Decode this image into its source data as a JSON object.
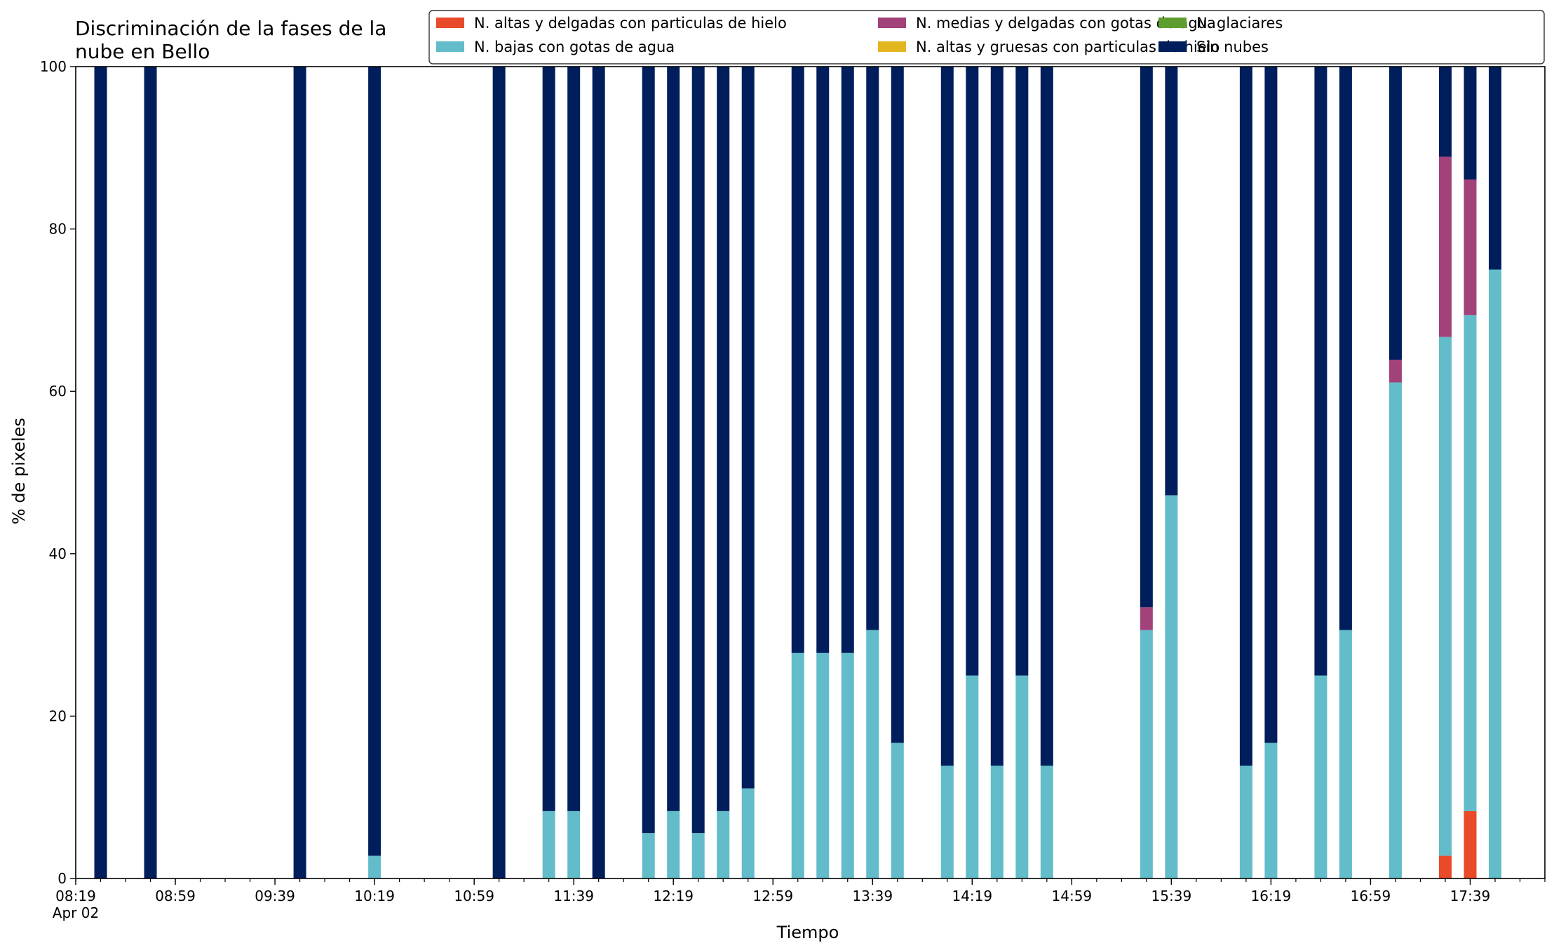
{
  "chart_data": {
    "type": "bar",
    "stacked": true,
    "title_lines": [
      "Discriminación de la fases de la",
      "nube en Bello"
    ],
    "xlabel": "Tiempo",
    "ylabel": "% de pixeles",
    "ylim": [
      0,
      100
    ],
    "yticks": [
      0,
      20,
      40,
      60,
      80,
      100
    ],
    "x_axis": {
      "start": "08:19",
      "end": "18:09",
      "major_ticks": [
        "08:19",
        "08:59",
        "09:39",
        "10:19",
        "10:59",
        "11:39",
        "12:19",
        "12:59",
        "13:39",
        "14:19",
        "14:59",
        "15:39",
        "16:19",
        "16:59",
        "17:39"
      ],
      "minor_tick_step_minutes": 10,
      "date_label": "Apr 02"
    },
    "legend_position": "top-right",
    "grid": false,
    "series": [
      {
        "name": "N. altas y delgadas con particulas de hielo",
        "color": "#e84a2a"
      },
      {
        "name": "N. altas y gruesas con particulas de hielo",
        "color": "#e3b51e"
      },
      {
        "name": "N. bajas con gotas de agua",
        "color": "#62bcc9"
      },
      {
        "name": "N. glaciares",
        "color": "#5e9e2f"
      },
      {
        "name": "N. medias y delgadas con gotas de agua",
        "color": "#a2427a"
      },
      {
        "name": "Sin nubes",
        "color": "#001e5c"
      }
    ],
    "legend_order": [
      0,
      2,
      4,
      1,
      3,
      5
    ],
    "bars": [
      {
        "time": "08:29",
        "values": [
          0,
          0,
          0,
          0,
          0,
          100
        ]
      },
      {
        "time": "08:49",
        "values": [
          0,
          0,
          0,
          0,
          0,
          100
        ]
      },
      {
        "time": "09:49",
        "values": [
          0,
          0,
          0,
          0,
          0,
          100
        ]
      },
      {
        "time": "10:19",
        "values": [
          0,
          0,
          2.8,
          0,
          0,
          97.2
        ]
      },
      {
        "time": "11:09",
        "values": [
          0,
          0,
          0,
          0,
          0,
          100
        ]
      },
      {
        "time": "11:29",
        "values": [
          0,
          0,
          8.3,
          0,
          0,
          91.7
        ]
      },
      {
        "time": "11:39",
        "values": [
          0,
          0,
          8.3,
          0,
          0,
          91.7
        ]
      },
      {
        "time": "11:49",
        "values": [
          0,
          0,
          0,
          0,
          0,
          100
        ]
      },
      {
        "time": "12:09",
        "values": [
          0,
          0,
          5.6,
          0,
          0,
          94.4
        ]
      },
      {
        "time": "12:19",
        "values": [
          0,
          0,
          8.3,
          0,
          0,
          91.7
        ]
      },
      {
        "time": "12:29",
        "values": [
          0,
          0,
          5.6,
          0,
          0,
          94.4
        ]
      },
      {
        "time": "12:39",
        "values": [
          0,
          0,
          8.3,
          0,
          0,
          91.7
        ]
      },
      {
        "time": "12:49",
        "values": [
          0,
          0,
          11.1,
          0,
          0,
          88.9
        ]
      },
      {
        "time": "13:09",
        "values": [
          0,
          0,
          27.8,
          0,
          0,
          72.2
        ]
      },
      {
        "time": "13:19",
        "values": [
          0,
          0,
          27.8,
          0,
          0,
          72.2
        ]
      },
      {
        "time": "13:29",
        "values": [
          0,
          0,
          27.8,
          0,
          0,
          72.2
        ]
      },
      {
        "time": "13:39",
        "values": [
          0,
          0,
          30.6,
          0,
          0,
          69.4
        ]
      },
      {
        "time": "13:49",
        "values": [
          0,
          0,
          16.7,
          0,
          0,
          83.3
        ]
      },
      {
        "time": "14:09",
        "values": [
          0,
          0,
          13.9,
          0,
          0,
          86.1
        ]
      },
      {
        "time": "14:19",
        "values": [
          0,
          0,
          25.0,
          0,
          0,
          75.0
        ]
      },
      {
        "time": "14:29",
        "values": [
          0,
          0,
          13.9,
          0,
          0,
          86.1
        ]
      },
      {
        "time": "14:39",
        "values": [
          0,
          0,
          25.0,
          0,
          0,
          75.0
        ]
      },
      {
        "time": "14:49",
        "values": [
          0,
          0,
          13.9,
          0,
          0,
          86.1
        ]
      },
      {
        "time": "15:29",
        "values": [
          0,
          0,
          30.6,
          0,
          2.8,
          66.6
        ]
      },
      {
        "time": "15:39",
        "values": [
          0,
          0,
          47.2,
          0,
          0,
          52.8
        ]
      },
      {
        "time": "16:09",
        "values": [
          0,
          0,
          13.9,
          0,
          0,
          86.1
        ]
      },
      {
        "time": "16:19",
        "values": [
          0,
          0,
          16.7,
          0,
          0,
          83.3
        ]
      },
      {
        "time": "16:39",
        "values": [
          0,
          0,
          25.0,
          0,
          0,
          75.0
        ]
      },
      {
        "time": "16:49",
        "values": [
          0,
          0,
          30.6,
          0,
          0,
          69.4
        ]
      },
      {
        "time": "17:09",
        "values": [
          0,
          0,
          61.1,
          0,
          2.8,
          36.1
        ]
      },
      {
        "time": "17:29",
        "values": [
          2.8,
          0,
          63.9,
          0,
          22.2,
          11.1
        ]
      },
      {
        "time": "17:39",
        "values": [
          8.3,
          0,
          61.1,
          0,
          16.7,
          13.9
        ]
      },
      {
        "time": "17:49",
        "values": [
          0,
          0,
          75.0,
          0,
          0,
          25.0
        ]
      }
    ]
  }
}
